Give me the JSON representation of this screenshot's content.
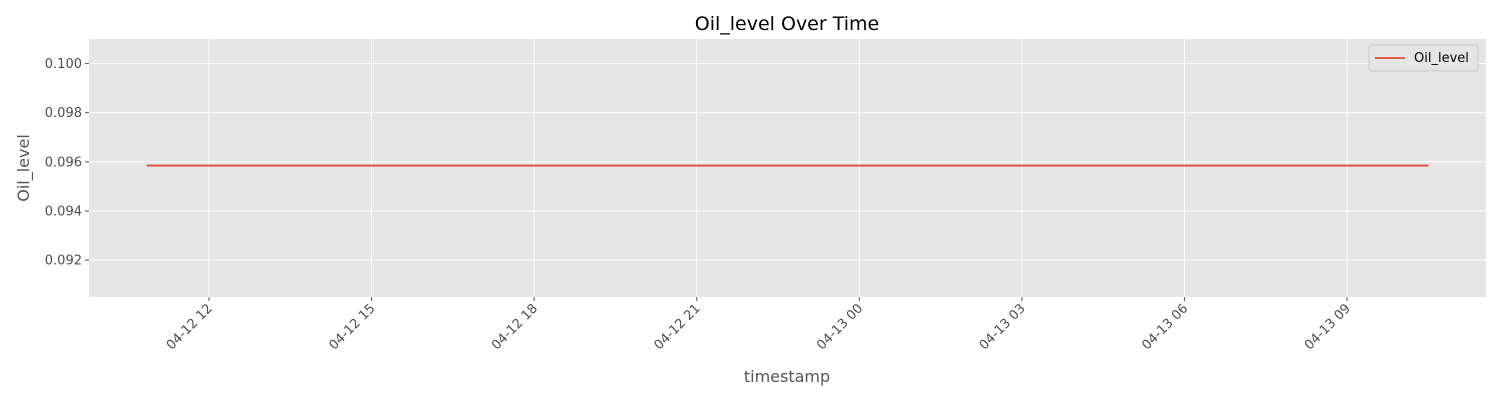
{
  "chart_data": {
    "type": "line",
    "title": "Oil_level Over Time",
    "xlabel": "timestamp",
    "ylabel": "Oil_level",
    "x_range": [
      "2023-04-12 10:51",
      "2023-04-13 10:30"
    ],
    "ylim": [
      0.0905,
      0.101
    ],
    "x_ticks": [
      "04-12 12",
      "04-12 15",
      "04-12 18",
      "04-12 21",
      "04-13 00",
      "04-13 03",
      "04-13 06",
      "04-13 09"
    ],
    "y_ticks": [
      "0.092",
      "0.094",
      "0.096",
      "0.098",
      "0.100"
    ],
    "series": [
      {
        "name": "Oil_level",
        "color": "#e24a33",
        "points": [
          {
            "x": "2023-04-12 10:51",
            "y": 0.09585
          },
          {
            "x": "2023-04-13 10:30",
            "y": 0.09585
          }
        ]
      }
    ],
    "grid": true,
    "legend_position": "top-right",
    "background_color": "#e5e5e5"
  }
}
